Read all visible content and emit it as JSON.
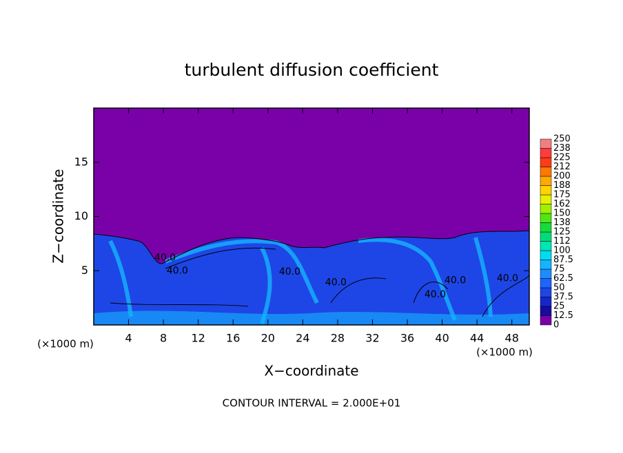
{
  "chart_data": {
    "type": "contour",
    "title": "turbulent diffusion coefficient",
    "xlabel": "X−coordinate",
    "ylabel": "Z−coordinate",
    "xunit": "(×1000 m)",
    "xunit_right": "(×1000 m)",
    "footnote": "CONTOUR INTERVAL = 2.000E+01",
    "xlim": [
      0,
      50
    ],
    "ylim": [
      0,
      20
    ],
    "xticks": [
      4,
      8,
      12,
      16,
      20,
      24,
      28,
      32,
      36,
      40,
      44,
      48
    ],
    "yticks": [
      5,
      10,
      15
    ],
    "colorbar": {
      "ticks": [
        0,
        12.5,
        25,
        37.5,
        50,
        62.5,
        75,
        87.5,
        100,
        112,
        125,
        138,
        150,
        162,
        175,
        188,
        200,
        212,
        225,
        238,
        250
      ],
      "colors": [
        "#7a00a8",
        "#1a0aa0",
        "#1428c8",
        "#1e46e6",
        "#1e64ff",
        "#1e8cff",
        "#14b4ff",
        "#00dcf0",
        "#00e6b4",
        "#00dc78",
        "#14dc3c",
        "#50e614",
        "#a0f000",
        "#e6f000",
        "#ffd200",
        "#ffaa00",
        "#ff7800",
        "#ff3c14",
        "#ff3c3c",
        "#f08080"
      ]
    },
    "contour_labels": [
      {
        "value": 40,
        "label": "40.0",
        "x": 8.2,
        "y": 6.2
      },
      {
        "value": 40,
        "label": "40.0",
        "x": 9.6,
        "y": 5.0
      },
      {
        "value": 40,
        "label": "40.0",
        "x": 22.5,
        "y": 4.9
      },
      {
        "value": 40,
        "label": "40.0",
        "x": 27.8,
        "y": 3.9
      },
      {
        "value": 40,
        "label": "40.0",
        "x": 39.2,
        "y": 2.8
      },
      {
        "value": 40,
        "label": "40.0",
        "x": 41.5,
        "y": 4.1
      },
      {
        "value": 40,
        "label": "40.0",
        "x": 47.5,
        "y": 4.3
      }
    ]
  }
}
